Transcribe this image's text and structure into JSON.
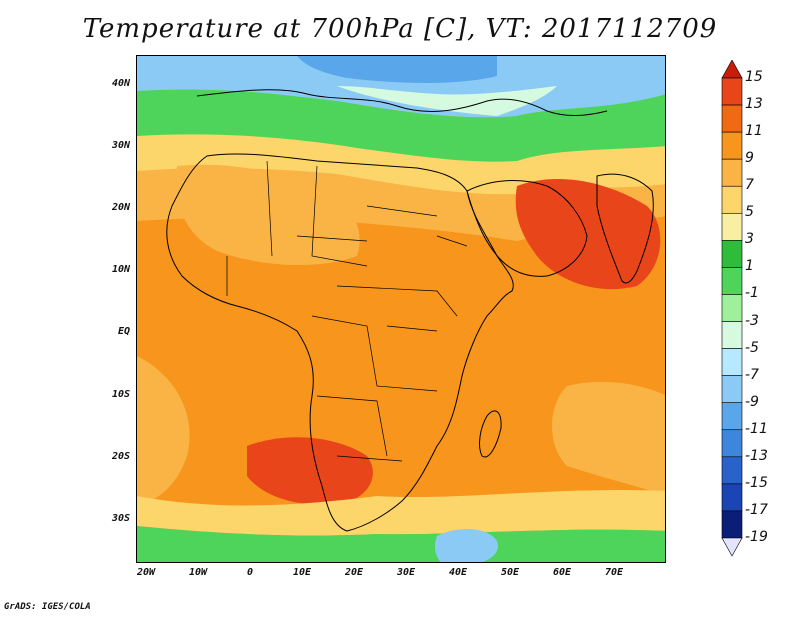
{
  "title": "Temperature at 700hPa [C], VT: 2017112709",
  "credit": "GrADS: IGES/COLA",
  "lat_labels": [
    "40N",
    "30N",
    "20N",
    "10N",
    "EQ",
    "10S",
    "20S",
    "30S"
  ],
  "lon_labels": [
    "20W",
    "10W",
    "0",
    "10E",
    "20E",
    "30E",
    "40E",
    "50E",
    "60E",
    "70E"
  ],
  "colorbar": {
    "labels": [
      "15",
      "13",
      "11",
      "9",
      "7",
      "5",
      "3",
      "1",
      "-1",
      "-3",
      "-5",
      "-7",
      "-9",
      "-11",
      "-13",
      "-15",
      "-17",
      "-19"
    ],
    "colors": [
      "#c81c0c",
      "#e8461a",
      "#f06a14",
      "#f7951d",
      "#f9b445",
      "#fcd56b",
      "#f8efa2",
      "#2ebc3a",
      "#4ed45a",
      "#9ef09a",
      "#d6fae0",
      "#b6e8ff",
      "#8ccaf6",
      "#5aa6ea",
      "#3c86dc",
      "#2a62cc",
      "#1b44b4",
      "#0a1e78",
      "#e4e4ff"
    ]
  },
  "map_colors": {
    "background_warm": "#f7951d",
    "hot": "#e8461a",
    "warm": "#f9b445",
    "mild": "#fcd56b",
    "cool_green": "#4ed45a",
    "cold_blue": "#5aa6ea",
    "colder_blue": "#b6e8ff"
  }
}
